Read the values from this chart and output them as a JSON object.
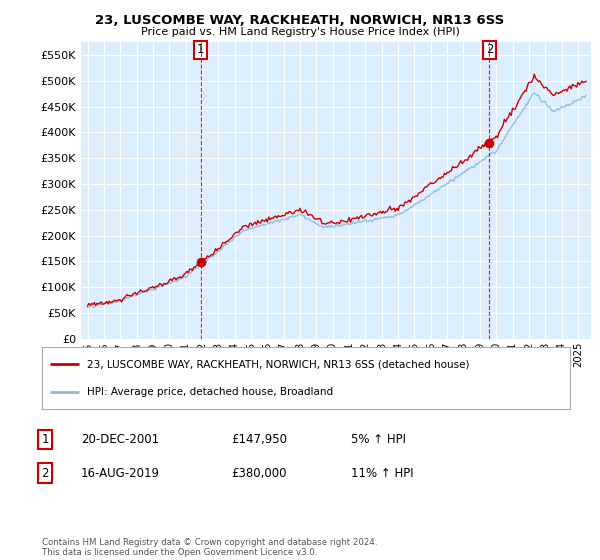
{
  "title": "23, LUSCOMBE WAY, RACKHEATH, NORWICH, NR13 6SS",
  "subtitle": "Price paid vs. HM Land Registry's House Price Index (HPI)",
  "sale1_date": "20-DEC-2001",
  "sale1_price": 147950,
  "sale1_t": 2001.917,
  "sale2_date": "16-AUG-2019",
  "sale2_price": 380000,
  "sale2_t": 2019.583,
  "sale1_pct": "5% ↑ HPI",
  "sale2_pct": "11% ↑ HPI",
  "legend1": "23, LUSCOMBE WAY, RACKHEATH, NORWICH, NR13 6SS (detached house)",
  "legend2": "HPI: Average price, detached house, Broadland",
  "footer": "Contains HM Land Registry data © Crown copyright and database right 2024.\nThis data is licensed under the Open Government Licence v3.0.",
  "line1_color": "#cc0000",
  "line2_color": "#88bbdd",
  "vline_color": "#cc0000",
  "marker_color": "#cc0000",
  "bg_plot": "#ddeeff",
  "bg_white": "#ffffff",
  "ylim": [
    0,
    575000
  ],
  "yticks": [
    0,
    50000,
    100000,
    150000,
    200000,
    250000,
    300000,
    350000,
    400000,
    450000,
    500000,
    550000
  ],
  "start_year": 1995,
  "end_year": 2025
}
